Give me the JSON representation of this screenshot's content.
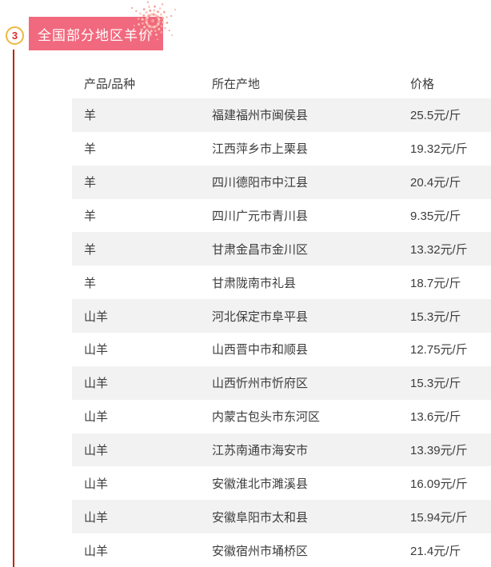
{
  "section": {
    "number": "3",
    "title": "全国部分地区羊价"
  },
  "table": {
    "headers": [
      "产品/品种",
      "所在产地",
      "价格"
    ],
    "rows": [
      {
        "product": "羊",
        "origin": "福建福州市闽侯县",
        "price": "25.5元/斤"
      },
      {
        "product": "羊",
        "origin": "江西萍乡市上栗县",
        "price": "19.32元/斤"
      },
      {
        "product": "羊",
        "origin": "四川德阳市中江县",
        "price": "20.4元/斤"
      },
      {
        "product": "羊",
        "origin": "四川广元市青川县",
        "price": "9.35元/斤"
      },
      {
        "product": "羊",
        "origin": "甘肃金昌市金川区",
        "price": "13.32元/斤"
      },
      {
        "product": "羊",
        "origin": "甘肃陇南市礼县",
        "price": "18.7元/斤"
      },
      {
        "product": "山羊",
        "origin": "河北保定市阜平县",
        "price": "15.3元/斤"
      },
      {
        "product": "山羊",
        "origin": "山西晋中市和顺县",
        "price": "12.75元/斤"
      },
      {
        "product": "山羊",
        "origin": "山西忻州市忻府区",
        "price": "15.3元/斤"
      },
      {
        "product": "山羊",
        "origin": "内蒙古包头市东河区",
        "price": "13.6元/斤"
      },
      {
        "product": "山羊",
        "origin": "江苏南通市海安市",
        "price": "13.39元/斤"
      },
      {
        "product": "山羊",
        "origin": "安徽淮北市濉溪县",
        "price": "16.09元/斤"
      },
      {
        "product": "山羊",
        "origin": "安徽阜阳市太和县",
        "price": "15.94元/斤"
      },
      {
        "product": "山羊",
        "origin": "安徽宿州市埇桥区",
        "price": "21.4元/斤"
      }
    ]
  },
  "colors": {
    "banner_pink": "#f1697e",
    "vertical_line_red": "#c42208",
    "badge_ring_gold": "#efb83f",
    "badge_number_red": "#e02b2b",
    "row_alt_gray": "#f2f2f2",
    "text_gray": "#3c3c3c",
    "firework_pinks": [
      "#f4a49a",
      "#f9c9bd",
      "#f59d96"
    ]
  },
  "icons": {
    "firework": "firework-burst-decoration"
  },
  "chart_data": {
    "type": "table",
    "title": "全国部分地区羊价",
    "columns": [
      "产品/品种",
      "所在产地",
      "价格"
    ],
    "rows": [
      [
        "羊",
        "福建福州市闽侯县",
        "25.5元/斤"
      ],
      [
        "羊",
        "江西萍乡市上栗县",
        "19.32元/斤"
      ],
      [
        "羊",
        "四川德阳市中江县",
        "20.4元/斤"
      ],
      [
        "羊",
        "四川广元市青川县",
        "9.35元/斤"
      ],
      [
        "羊",
        "甘肃金昌市金川区",
        "13.32元/斤"
      ],
      [
        "羊",
        "甘肃陇南市礼县",
        "18.7元/斤"
      ],
      [
        "山羊",
        "河北保定市阜平县",
        "15.3元/斤"
      ],
      [
        "山羊",
        "山西晋中市和顺县",
        "12.75元/斤"
      ],
      [
        "山羊",
        "山西忻州市忻府区",
        "15.3元/斤"
      ],
      [
        "山羊",
        "内蒙古包头市东河区",
        "13.6元/斤"
      ],
      [
        "山羊",
        "江苏南通市海安市",
        "13.39元/斤"
      ],
      [
        "山羊",
        "安徽淮北市濉溪县",
        "16.09元/斤"
      ],
      [
        "山羊",
        "安徽阜阳市太和县",
        "15.94元/斤"
      ],
      [
        "山羊",
        "安徽宿州市埇桥区",
        "21.4元/斤"
      ]
    ],
    "prices_numeric_yuan_per_jin": [
      25.5,
      19.32,
      20.4,
      9.35,
      13.32,
      18.7,
      15.3,
      12.75,
      15.3,
      13.6,
      13.39,
      16.09,
      15.94,
      21.4
    ],
    "layout_hints": {
      "zebra_striping": true,
      "header_background": "white",
      "alt_row_background": "#f2f2f2"
    }
  }
}
